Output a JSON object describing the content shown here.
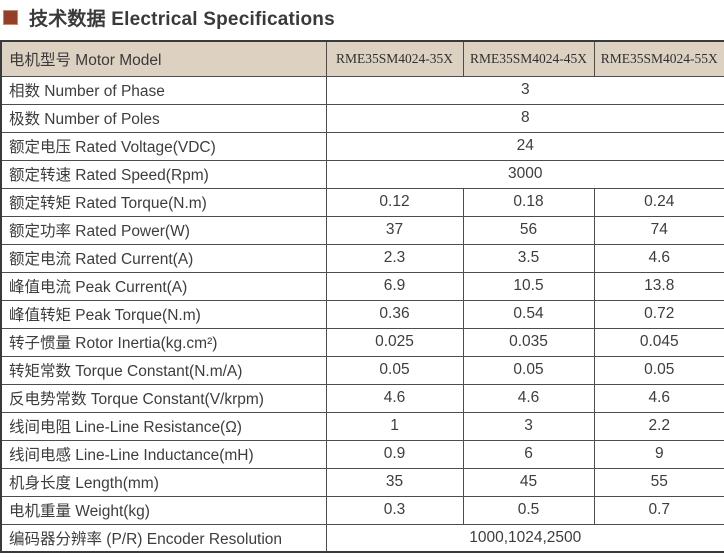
{
  "title": {
    "text": "技术数据 Electrical Specifications"
  },
  "colors": {
    "bullet": "#963f28",
    "header_bg": "#ddd2c1",
    "border": "#4d4d4d",
    "text": "#3d3d3d"
  },
  "table": {
    "header": {
      "label": "电机型号 Motor Model",
      "models": [
        "RME35SM4024-35X",
        "RME35SM4024-45X",
        "RME35SM4024-55X"
      ]
    },
    "rows": [
      {
        "label": "相数 Number of Phase",
        "span": true,
        "value": "3"
      },
      {
        "label": "极数 Number of Poles",
        "span": true,
        "value": "8"
      },
      {
        "label": "额定电压 Rated Voltage(VDC)",
        "span": true,
        "value": "24"
      },
      {
        "label": "额定转速 Rated Speed(Rpm)",
        "span": true,
        "value": "3000"
      },
      {
        "label": "额定转矩 Rated Torque(N.m)",
        "values": [
          "0.12",
          "0.18",
          "0.24"
        ]
      },
      {
        "label": "额定功率 Rated Power(W)",
        "values": [
          "37",
          "56",
          "74"
        ]
      },
      {
        "label": "额定电流 Rated Current(A)",
        "values": [
          "2.3",
          "3.5",
          "4.6"
        ]
      },
      {
        "label": "峰值电流 Peak Current(A)",
        "values": [
          "6.9",
          "10.5",
          "13.8"
        ]
      },
      {
        "label": "峰值转矩 Peak Torque(N.m)",
        "values": [
          "0.36",
          "0.54",
          "0.72"
        ]
      },
      {
        "label": "转子惯量 Rotor Inertia(kg.cm²)",
        "values": [
          "0.025",
          "0.035",
          "0.045"
        ]
      },
      {
        "label": "转矩常数 Torque Constant(N.m/A)",
        "values": [
          "0.05",
          "0.05",
          "0.05"
        ]
      },
      {
        "label": "反电势常数 Torque Constant(V/krpm)",
        "values": [
          "4.6",
          "4.6",
          "4.6"
        ]
      },
      {
        "label": "线间电阻 Line-Line Resistance(Ω)",
        "values": [
          "1",
          "3",
          "2.2"
        ]
      },
      {
        "label": "线间电感 Line-Line Inductance(mH)",
        "values": [
          "0.9",
          "6",
          "9"
        ]
      },
      {
        "label": "机身长度 Length(mm)",
        "values": [
          "35",
          "45",
          "55"
        ]
      },
      {
        "label": "电机重量 Weight(kg)",
        "values": [
          "0.3",
          "0.5",
          "0.7"
        ]
      },
      {
        "label": "编码器分辨率 (P/R) Encoder Resolution",
        "span": true,
        "value": "1000,1024,2500"
      }
    ]
  }
}
